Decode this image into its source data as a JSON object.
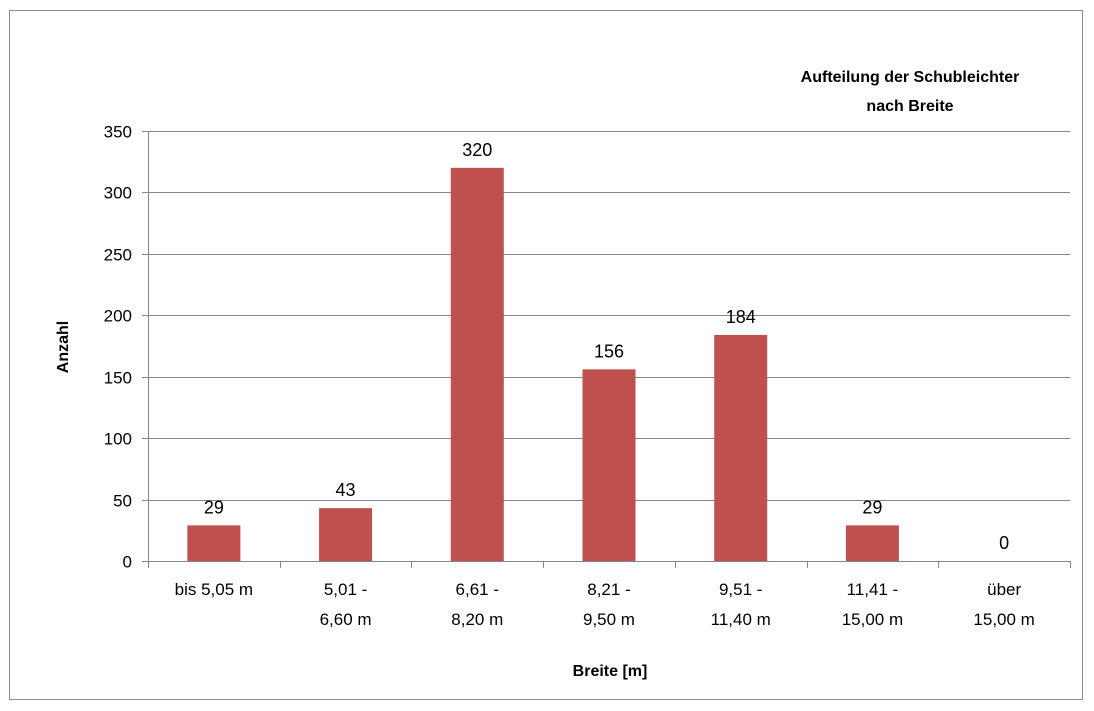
{
  "chart_data": {
    "type": "bar",
    "title_lines": [
      "Aufteilung der Schubleichter",
      "nach Breite"
    ],
    "xlabel": "Breite [m]",
    "ylabel": "Anzahl",
    "categories": [
      [
        "bis 5,05 m"
      ],
      [
        "5,01 -",
        "6,60 m"
      ],
      [
        "6,61 -",
        "8,20 m"
      ],
      [
        "8,21 -",
        "9,50 m"
      ],
      [
        "9,51 -",
        "11,40 m"
      ],
      [
        "11,41 -",
        "15,00 m"
      ],
      [
        "über",
        "15,00 m"
      ]
    ],
    "values": [
      29,
      43,
      320,
      156,
      184,
      29,
      0
    ],
    "ylim": [
      0,
      350
    ],
    "yticks": [
      0,
      50,
      100,
      150,
      200,
      250,
      300,
      350
    ],
    "grid": true,
    "legend": "none",
    "bar_color": "#c0504d",
    "grid_color": "#868686"
  }
}
